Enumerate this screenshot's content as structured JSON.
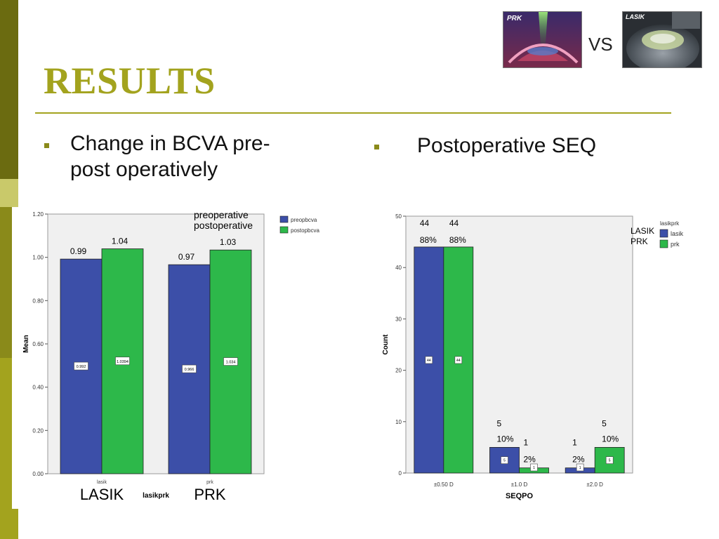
{
  "slide": {
    "title": "RESULTS",
    "vs_label": "VS",
    "thumb_prk_label": "PRK",
    "thumb_lasik_label": "LASIK",
    "left_heading": "Change in BCVA pre-post operatively",
    "left_heading_line1": "Change in BCVA pre-",
    "left_heading_line2": "post operatively",
    "right_heading": "Postoperative SEQ"
  },
  "colors": {
    "accent": "#a3a31e",
    "series_blue": "#3c4fa8",
    "series_green": "#2db84a",
    "plot_bg": "#f0f0f0"
  },
  "chart_data": [
    {
      "type": "bar",
      "categories": [
        "lasik",
        "prk"
      ],
      "xlabel": "lasikprk",
      "ylabel": "Mean",
      "ylim": [
        0,
        1.2
      ],
      "yticks": [
        "0.00",
        "0.20",
        "0.40",
        "0.60",
        "0.80",
        "1.00",
        "1.20"
      ],
      "legend_position": "top-right",
      "series": [
        {
          "name": "preopbcva",
          "values": [
            0.992,
            0.966
          ],
          "inner_labels": [
            "0.992",
            "0.966"
          ],
          "outer_labels": [
            "0.99",
            "0.97"
          ]
        },
        {
          "name": "postopbcva",
          "values": [
            1.0394,
            1.034
          ],
          "inner_labels": [
            "1.0394",
            "1.034"
          ],
          "outer_labels": [
            "1.04",
            "1.03"
          ]
        }
      ],
      "annotations": {
        "legend_callouts": [
          "preoperative",
          "postoperative"
        ],
        "category_callouts": [
          "LASIK",
          "PRK"
        ]
      }
    },
    {
      "type": "bar",
      "categories": [
        "±0.50 D",
        "±1.0 D",
        "±2.0 D"
      ],
      "xlabel": "SEQPO",
      "ylabel": "Count",
      "ylim": [
        0,
        50
      ],
      "yticks": [
        "0",
        "10",
        "20",
        "30",
        "40",
        "50"
      ],
      "legend_title": "lasikprk",
      "legend_position": "top-right",
      "series": [
        {
          "name": "lasik",
          "values": [
            44,
            5,
            1
          ],
          "inner_labels": [
            "44",
            "5",
            "1"
          ],
          "count_labels": [
            "44",
            "5",
            "1"
          ],
          "pct_labels": [
            "88%",
            "10%",
            "2%"
          ]
        },
        {
          "name": "prk",
          "values": [
            44,
            1,
            5
          ],
          "inner_labels": [
            "44",
            "1",
            "5"
          ],
          "count_labels": [
            "44",
            "1",
            "5"
          ],
          "pct_labels": [
            "88%",
            "2%",
            "10%"
          ]
        }
      ],
      "annotations": {
        "legend_callouts": [
          "LASIK",
          "PRK"
        ]
      }
    }
  ]
}
